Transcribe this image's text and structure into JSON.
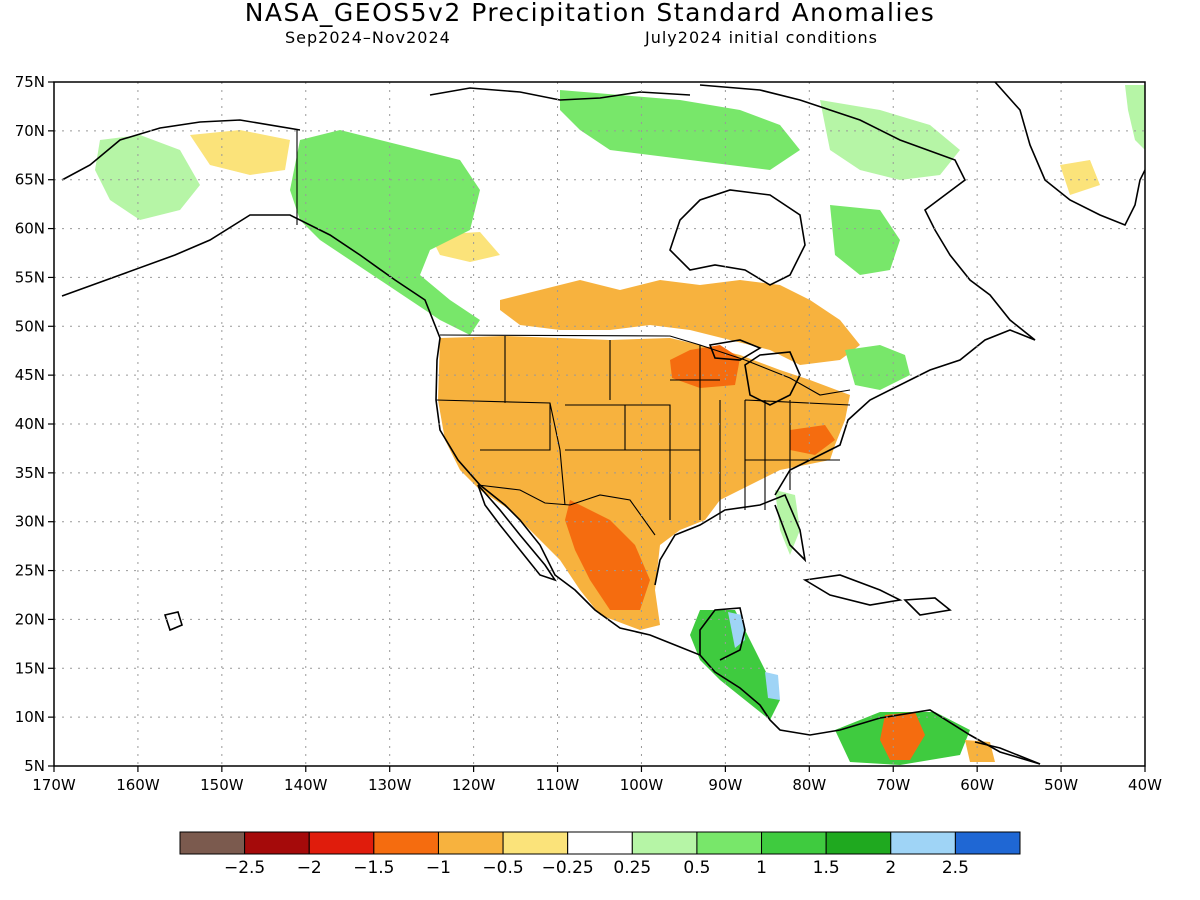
{
  "header": {
    "title": "NASA_GEOS5v2 Precipitation Standard Anomalies",
    "period": "Sep2024–Nov2024",
    "initial_conditions": "July2024 initial conditions"
  },
  "axes": {
    "lat_labels": [
      "75N",
      "70N",
      "65N",
      "60N",
      "55N",
      "50N",
      "45N",
      "40N",
      "35N",
      "30N",
      "25N",
      "20N",
      "15N",
      "10N",
      "5N"
    ],
    "lon_labels": [
      "170W",
      "160W",
      "150W",
      "140W",
      "130W",
      "120W",
      "110W",
      "100W",
      "90W",
      "80W",
      "70W",
      "60W",
      "50W",
      "40W"
    ]
  },
  "colorbar": {
    "colors": [
      "#7b5a4e",
      "#a50a0a",
      "#e01c0c",
      "#f56c0f",
      "#f7b23e",
      "#fbe37a",
      "#ffffff",
      "#b6f5a6",
      "#78e76a",
      "#3fcb3f",
      "#1fa91f",
      "#9fd4f6",
      "#1f67d4"
    ],
    "labels": [
      "−2.5",
      "−2",
      "−1.5",
      "−1",
      "−0.5",
      "−0.25",
      "0.25",
      "0.5",
      "1",
      "1.5",
      "2",
      "2.5"
    ]
  }
}
